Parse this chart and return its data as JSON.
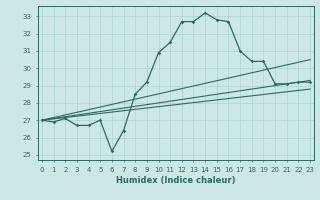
{
  "title": "",
  "xlabel": "Humidex (Indice chaleur)",
  "bg_color": "#cce8e4",
  "grid_color": "#aad4cf",
  "line_color": "#2a6b60",
  "x_ticks": [
    0,
    1,
    2,
    3,
    4,
    5,
    6,
    7,
    8,
    9,
    10,
    11,
    12,
    13,
    14,
    15,
    16,
    17,
    18,
    19,
    20,
    21,
    22,
    23
  ],
  "y_ticks": [
    25,
    26,
    27,
    28,
    29,
    30,
    31,
    32,
    33
  ],
  "y_min": 24.7,
  "y_max": 33.6,
  "xlim_min": -0.3,
  "xlim_max": 23.3,
  "line_main": [
    27.0,
    26.9,
    27.1,
    26.7,
    26.7,
    27.0,
    25.2,
    26.4,
    28.5,
    29.2,
    30.9,
    31.5,
    32.7,
    32.7,
    33.2,
    32.8,
    32.7,
    31.0,
    30.4,
    30.4,
    29.1,
    29.1,
    29.2,
    29.2
  ],
  "line_reg1_pts": [
    [
      0,
      27.0
    ],
    [
      23,
      30.5
    ]
  ],
  "line_reg2_pts": [
    [
      0,
      27.0
    ],
    [
      23,
      29.3
    ]
  ],
  "line_reg3_pts": [
    [
      0,
      27.0
    ],
    [
      23,
      28.8
    ]
  ]
}
